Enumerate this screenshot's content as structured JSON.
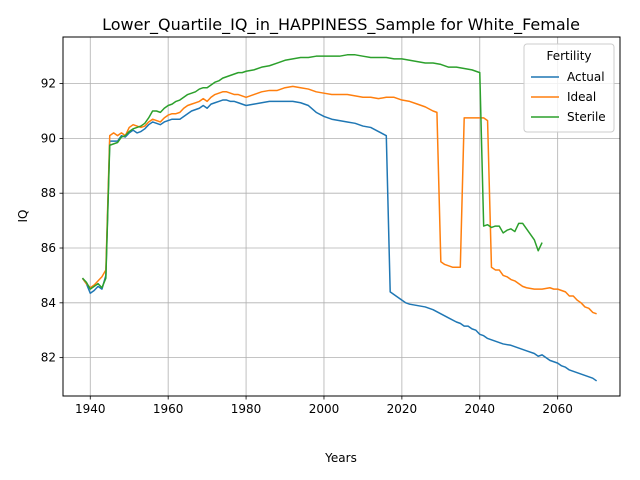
{
  "chart_data": {
    "type": "line",
    "title": "Lower_Quartile_IQ_in_HAPPINESS_Sample for White_Female",
    "xlabel": "Years",
    "ylabel": "IQ",
    "xlim": [
      1933,
      2076
    ],
    "ylim": [
      80.6,
      93.7
    ],
    "xticks": [
      1940,
      1960,
      1980,
      2000,
      2020,
      2040,
      2060
    ],
    "yticks": [
      82,
      84,
      86,
      88,
      90,
      92
    ],
    "grid": true,
    "legend": {
      "title": "Fertility",
      "position": "top-right"
    },
    "series": [
      {
        "name": "Actual",
        "color": "#1f77b4",
        "points": [
          [
            1938,
            84.9
          ],
          [
            1939,
            84.7
          ],
          [
            1940,
            84.35
          ],
          [
            1941,
            84.45
          ],
          [
            1942,
            84.6
          ],
          [
            1943,
            84.5
          ],
          [
            1944,
            85.0
          ],
          [
            1945,
            89.9
          ],
          [
            1946,
            89.9
          ],
          [
            1947,
            89.9
          ],
          [
            1948,
            90.1
          ],
          [
            1949,
            90.05
          ],
          [
            1950,
            90.2
          ],
          [
            1951,
            90.3
          ],
          [
            1952,
            90.2
          ],
          [
            1953,
            90.25
          ],
          [
            1954,
            90.35
          ],
          [
            1955,
            90.5
          ],
          [
            1956,
            90.6
          ],
          [
            1957,
            90.55
          ],
          [
            1958,
            90.5
          ],
          [
            1959,
            90.6
          ],
          [
            1960,
            90.65
          ],
          [
            1961,
            90.7
          ],
          [
            1962,
            90.7
          ],
          [
            1963,
            90.7
          ],
          [
            1964,
            90.8
          ],
          [
            1965,
            90.9
          ],
          [
            1966,
            91.0
          ],
          [
            1967,
            91.05
          ],
          [
            1968,
            91.1
          ],
          [
            1969,
            91.2
          ],
          [
            1970,
            91.1
          ],
          [
            1971,
            91.25
          ],
          [
            1972,
            91.3
          ],
          [
            1973,
            91.35
          ],
          [
            1974,
            91.4
          ],
          [
            1975,
            91.4
          ],
          [
            1976,
            91.35
          ],
          [
            1977,
            91.35
          ],
          [
            1978,
            91.3
          ],
          [
            1979,
            91.25
          ],
          [
            1980,
            91.2
          ],
          [
            1982,
            91.25
          ],
          [
            1984,
            91.3
          ],
          [
            1986,
            91.35
          ],
          [
            1988,
            91.35
          ],
          [
            1990,
            91.35
          ],
          [
            1992,
            91.35
          ],
          [
            1994,
            91.3
          ],
          [
            1996,
            91.2
          ],
          [
            1998,
            90.95
          ],
          [
            2000,
            90.8
          ],
          [
            2002,
            90.7
          ],
          [
            2004,
            90.65
          ],
          [
            2006,
            90.6
          ],
          [
            2008,
            90.55
          ],
          [
            2010,
            90.45
          ],
          [
            2012,
            90.4
          ],
          [
            2014,
            90.25
          ],
          [
            2016,
            90.1
          ],
          [
            2017,
            84.4
          ],
          [
            2018,
            84.3
          ],
          [
            2019,
            84.2
          ],
          [
            2020,
            84.1
          ],
          [
            2021,
            84.0
          ],
          [
            2022,
            83.95
          ],
          [
            2024,
            83.9
          ],
          [
            2026,
            83.85
          ],
          [
            2028,
            83.75
          ],
          [
            2030,
            83.6
          ],
          [
            2032,
            83.45
          ],
          [
            2034,
            83.3
          ],
          [
            2035,
            83.25
          ],
          [
            2036,
            83.15
          ],
          [
            2037,
            83.15
          ],
          [
            2038,
            83.05
          ],
          [
            2039,
            83.0
          ],
          [
            2040,
            82.85
          ],
          [
            2041,
            82.8
          ],
          [
            2042,
            82.7
          ],
          [
            2043,
            82.65
          ],
          [
            2044,
            82.6
          ],
          [
            2046,
            82.5
          ],
          [
            2048,
            82.45
          ],
          [
            2050,
            82.35
          ],
          [
            2052,
            82.25
          ],
          [
            2054,
            82.15
          ],
          [
            2055,
            82.05
          ],
          [
            2056,
            82.1
          ],
          [
            2057,
            82.0
          ],
          [
            2058,
            81.9
          ],
          [
            2059,
            81.85
          ],
          [
            2060,
            81.8
          ],
          [
            2061,
            81.7
          ],
          [
            2062,
            81.65
          ],
          [
            2063,
            81.55
          ],
          [
            2064,
            81.5
          ],
          [
            2065,
            81.45
          ],
          [
            2066,
            81.4
          ],
          [
            2067,
            81.35
          ],
          [
            2068,
            81.3
          ],
          [
            2069,
            81.25
          ],
          [
            2070,
            81.15
          ]
        ]
      },
      {
        "name": "Ideal",
        "color": "#ff7f0e",
        "points": [
          [
            1938,
            84.9
          ],
          [
            1939,
            84.7
          ],
          [
            1940,
            84.55
          ],
          [
            1941,
            84.65
          ],
          [
            1942,
            84.8
          ],
          [
            1943,
            84.95
          ],
          [
            1944,
            85.2
          ],
          [
            1945,
            90.1
          ],
          [
            1946,
            90.2
          ],
          [
            1947,
            90.1
          ],
          [
            1948,
            90.2
          ],
          [
            1949,
            90.1
          ],
          [
            1950,
            90.4
          ],
          [
            1951,
            90.5
          ],
          [
            1952,
            90.45
          ],
          [
            1953,
            90.4
          ],
          [
            1954,
            90.45
          ],
          [
            1955,
            90.6
          ],
          [
            1956,
            90.7
          ],
          [
            1957,
            90.65
          ],
          [
            1958,
            90.6
          ],
          [
            1959,
            90.75
          ],
          [
            1960,
            90.85
          ],
          [
            1961,
            90.9
          ],
          [
            1962,
            90.9
          ],
          [
            1963,
            90.95
          ],
          [
            1964,
            91.1
          ],
          [
            1965,
            91.2
          ],
          [
            1966,
            91.25
          ],
          [
            1967,
            91.3
          ],
          [
            1968,
            91.35
          ],
          [
            1969,
            91.45
          ],
          [
            1970,
            91.35
          ],
          [
            1971,
            91.5
          ],
          [
            1972,
            91.6
          ],
          [
            1973,
            91.65
          ],
          [
            1974,
            91.7
          ],
          [
            1975,
            91.7
          ],
          [
            1976,
            91.65
          ],
          [
            1977,
            91.6
          ],
          [
            1978,
            91.6
          ],
          [
            1979,
            91.55
          ],
          [
            1980,
            91.5
          ],
          [
            1982,
            91.6
          ],
          [
            1984,
            91.7
          ],
          [
            1986,
            91.75
          ],
          [
            1988,
            91.75
          ],
          [
            1990,
            91.85
          ],
          [
            1992,
            91.9
          ],
          [
            1994,
            91.85
          ],
          [
            1996,
            91.8
          ],
          [
            1998,
            91.7
          ],
          [
            2000,
            91.65
          ],
          [
            2002,
            91.6
          ],
          [
            2004,
            91.6
          ],
          [
            2006,
            91.6
          ],
          [
            2008,
            91.55
          ],
          [
            2010,
            91.5
          ],
          [
            2012,
            91.5
          ],
          [
            2014,
            91.45
          ],
          [
            2016,
            91.5
          ],
          [
            2018,
            91.5
          ],
          [
            2020,
            91.4
          ],
          [
            2022,
            91.35
          ],
          [
            2024,
            91.25
          ],
          [
            2026,
            91.15
          ],
          [
            2028,
            91.0
          ],
          [
            2029,
            90.95
          ],
          [
            2030,
            85.5
          ],
          [
            2031,
            85.4
          ],
          [
            2032,
            85.35
          ],
          [
            2033,
            85.3
          ],
          [
            2034,
            85.3
          ],
          [
            2035,
            85.3
          ],
          [
            2036,
            90.75
          ],
          [
            2037,
            90.75
          ],
          [
            2038,
            90.75
          ],
          [
            2039,
            90.75
          ],
          [
            2040,
            90.75
          ],
          [
            2041,
            90.75
          ],
          [
            2042,
            90.65
          ],
          [
            2043,
            85.3
          ],
          [
            2044,
            85.2
          ],
          [
            2045,
            85.2
          ],
          [
            2046,
            85.0
          ],
          [
            2047,
            84.95
          ],
          [
            2048,
            84.85
          ],
          [
            2049,
            84.8
          ],
          [
            2050,
            84.7
          ],
          [
            2051,
            84.6
          ],
          [
            2052,
            84.55
          ],
          [
            2054,
            84.5
          ],
          [
            2056,
            84.5
          ],
          [
            2058,
            84.55
          ],
          [
            2059,
            84.5
          ],
          [
            2060,
            84.5
          ],
          [
            2061,
            84.45
          ],
          [
            2062,
            84.4
          ],
          [
            2063,
            84.25
          ],
          [
            2064,
            84.25
          ],
          [
            2065,
            84.1
          ],
          [
            2066,
            84.0
          ],
          [
            2067,
            83.85
          ],
          [
            2068,
            83.8
          ],
          [
            2069,
            83.65
          ],
          [
            2070,
            83.6
          ]
        ]
      },
      {
        "name": "Sterile",
        "color": "#2ca02c",
        "points": [
          [
            1938,
            84.9
          ],
          [
            1939,
            84.75
          ],
          [
            1940,
            84.5
          ],
          [
            1941,
            84.6
          ],
          [
            1942,
            84.7
          ],
          [
            1943,
            84.55
          ],
          [
            1944,
            84.9
          ],
          [
            1945,
            89.75
          ],
          [
            1946,
            89.8
          ],
          [
            1947,
            89.85
          ],
          [
            1948,
            90.05
          ],
          [
            1949,
            90.1
          ],
          [
            1950,
            90.25
          ],
          [
            1951,
            90.35
          ],
          [
            1952,
            90.4
          ],
          [
            1953,
            90.45
          ],
          [
            1954,
            90.55
          ],
          [
            1955,
            90.75
          ],
          [
            1956,
            91.0
          ],
          [
            1957,
            91.0
          ],
          [
            1958,
            90.95
          ],
          [
            1959,
            91.1
          ],
          [
            1960,
            91.2
          ],
          [
            1961,
            91.25
          ],
          [
            1962,
            91.35
          ],
          [
            1963,
            91.4
          ],
          [
            1964,
            91.5
          ],
          [
            1965,
            91.6
          ],
          [
            1966,
            91.65
          ],
          [
            1967,
            91.7
          ],
          [
            1968,
            91.8
          ],
          [
            1969,
            91.85
          ],
          [
            1970,
            91.85
          ],
          [
            1971,
            91.95
          ],
          [
            1972,
            92.05
          ],
          [
            1973,
            92.1
          ],
          [
            1974,
            92.2
          ],
          [
            1975,
            92.25
          ],
          [
            1976,
            92.3
          ],
          [
            1977,
            92.35
          ],
          [
            1978,
            92.4
          ],
          [
            1979,
            92.4
          ],
          [
            1980,
            92.45
          ],
          [
            1982,
            92.5
          ],
          [
            1984,
            92.6
          ],
          [
            1986,
            92.65
          ],
          [
            1988,
            92.75
          ],
          [
            1990,
            92.85
          ],
          [
            1992,
            92.9
          ],
          [
            1994,
            92.95
          ],
          [
            1996,
            92.95
          ],
          [
            1998,
            93.0
          ],
          [
            2000,
            93.0
          ],
          [
            2002,
            93.0
          ],
          [
            2004,
            93.0
          ],
          [
            2006,
            93.05
          ],
          [
            2008,
            93.05
          ],
          [
            2010,
            93.0
          ],
          [
            2012,
            92.95
          ],
          [
            2014,
            92.95
          ],
          [
            2016,
            92.95
          ],
          [
            2018,
            92.9
          ],
          [
            2020,
            92.9
          ],
          [
            2022,
            92.85
          ],
          [
            2024,
            92.8
          ],
          [
            2026,
            92.75
          ],
          [
            2028,
            92.75
          ],
          [
            2030,
            92.7
          ],
          [
            2032,
            92.6
          ],
          [
            2034,
            92.6
          ],
          [
            2036,
            92.55
          ],
          [
            2038,
            92.5
          ],
          [
            2039,
            92.45
          ],
          [
            2040,
            92.4
          ],
          [
            2041,
            86.8
          ],
          [
            2042,
            86.85
          ],
          [
            2043,
            86.75
          ],
          [
            2044,
            86.8
          ],
          [
            2045,
            86.8
          ],
          [
            2046,
            86.55
          ],
          [
            2047,
            86.65
          ],
          [
            2048,
            86.7
          ],
          [
            2049,
            86.6
          ],
          [
            2050,
            86.9
          ],
          [
            2051,
            86.9
          ],
          [
            2052,
            86.7
          ],
          [
            2053,
            86.5
          ],
          [
            2054,
            86.3
          ],
          [
            2055,
            85.9
          ],
          [
            2056,
            86.2
          ]
        ]
      }
    ]
  }
}
